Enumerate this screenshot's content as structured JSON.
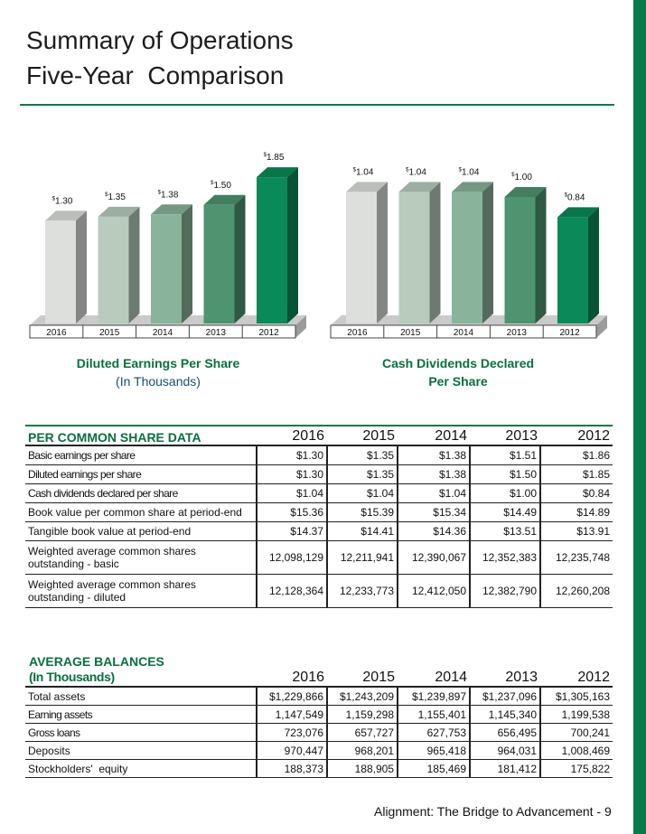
{
  "title": {
    "line1": "Summary of Operations",
    "line2": "Five-Year  Comparison"
  },
  "colors": {
    "accent": "#0a7a4a",
    "bars": [
      "#dcdfdc",
      "#b8cbbd",
      "#8ab39b",
      "#4e9470",
      "#0a8a58"
    ]
  },
  "chart_data": [
    {
      "type": "bar",
      "title": "Diluted Earnings Per Share",
      "subtitle": "(In Thousands)",
      "categories": [
        "2016",
        "2015",
        "2014",
        "2013",
        "2012"
      ],
      "values": [
        1.3,
        1.35,
        1.38,
        1.5,
        1.85
      ],
      "labels": [
        "1.30",
        "1.35",
        "1.38",
        "1.50",
        "1.85"
      ],
      "ylim": [
        0,
        2.0
      ]
    },
    {
      "type": "bar",
      "title": "Cash Dividends Declared",
      "subtitle": "Per Share",
      "categories": [
        "2016",
        "2015",
        "2014",
        "2013",
        "2012"
      ],
      "values": [
        1.04,
        1.04,
        1.04,
        1.0,
        0.84
      ],
      "labels": [
        "1.04",
        "1.04",
        "1.04",
        "1.00",
        "0.84"
      ],
      "ylim": [
        0,
        1.25
      ]
    }
  ],
  "per_share": {
    "heading": "PER COMMON SHARE DATA",
    "years": [
      "2016",
      "2015",
      "2014",
      "2013",
      "2012"
    ],
    "rows": [
      {
        "label": "Basic earnings per share",
        "values": [
          "$1.30",
          "$1.35",
          "$1.38",
          "$1.51",
          "$1.86"
        ]
      },
      {
        "label": "Diluted earnings per share",
        "values": [
          "$1.30",
          "$1.35",
          "$1.38",
          "$1.50",
          "$1.85"
        ]
      },
      {
        "label": "Cash dividends declared per share",
        "values": [
          "$1.04",
          "$1.04",
          "$1.04",
          "$1.00",
          "$0.84"
        ]
      },
      {
        "label": "Book value per common share at period-end",
        "values": [
          "$15.36",
          "$15.39",
          "$15.34",
          "$14.49",
          "$14.89"
        ]
      },
      {
        "label": "Tangible book value at period-end",
        "values": [
          "$14.37",
          "$14.41",
          "$14.36",
          "$13.51",
          "$13.91"
        ]
      },
      {
        "label": "Weighted average common shares outstanding - basic",
        "values": [
          "12,098,129",
          "12,211,941",
          "12,390,067",
          "12,352,383",
          "12,235,748"
        ]
      },
      {
        "label": "Weighted average common shares outstanding - diluted",
        "values": [
          "12,128,364",
          "12,233,773",
          "12,412,050",
          "12,382,790",
          "12,260,208"
        ]
      }
    ]
  },
  "avg_balances": {
    "heading": "AVERAGE BALANCES",
    "subheading": "(In Thousands)",
    "years": [
      "2016",
      "2015",
      "2014",
      "2013",
      "2012"
    ],
    "rows": [
      {
        "label": "Total assets",
        "values": [
          "$1,229,866",
          "$1,243,209",
          "$1,239,897",
          "$1,237,096",
          "$1,305,163"
        ]
      },
      {
        "label": "Earning assets",
        "values": [
          "1,147,549",
          "1,159,298",
          "1,155,401",
          "1,145,340",
          "1,199,538"
        ]
      },
      {
        "label": "Gross loans",
        "values": [
          "723,076",
          "657,727",
          "627,753",
          "656,495",
          "700,241"
        ]
      },
      {
        "label": "Deposits",
        "values": [
          "970,447",
          "968,201",
          "965,418",
          "964,031",
          "1,008,469"
        ]
      },
      {
        "label": "Stockholders'  equity",
        "values": [
          "188,373",
          "188,905",
          "185,469",
          "181,412",
          "175,822"
        ]
      }
    ]
  },
  "footer": "Alignment: The Bridge to Advancement - 9"
}
